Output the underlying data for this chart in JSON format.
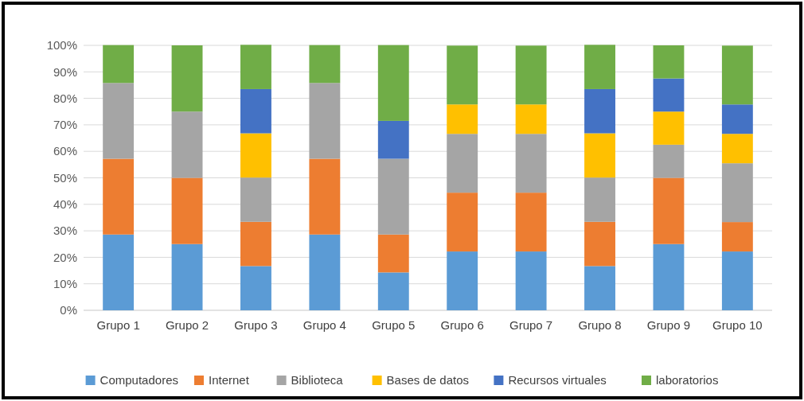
{
  "chart_data": {
    "type": "bar",
    "stacked": true,
    "categories": [
      "Grupo 1",
      "Grupo 2",
      "Grupo 3",
      "Grupo 4",
      "Grupo 5",
      "Grupo 6",
      "Grupo 7",
      "Grupo 8",
      "Grupo 9",
      "Grupo 10"
    ],
    "series": [
      {
        "name": "Computadores",
        "color": "#5b9bd5",
        "values": [
          28.6,
          25,
          16.7,
          28.6,
          14.3,
          22.2,
          22.2,
          16.7,
          25,
          22.2
        ]
      },
      {
        "name": "Internet",
        "color": "#ed7d31",
        "values": [
          28.6,
          25,
          16.7,
          28.6,
          14.3,
          22.2,
          22.2,
          16.7,
          25,
          11.1
        ]
      },
      {
        "name": "Biblioteca",
        "color": "#a5a5a5",
        "values": [
          28.6,
          25,
          16.7,
          28.6,
          28.6,
          22.2,
          22.2,
          16.7,
          12.5,
          22.2
        ]
      },
      {
        "name": "Bases de datos",
        "color": "#ffc000",
        "values": [
          0,
          0,
          16.7,
          0,
          0,
          11.1,
          11.1,
          16.7,
          12.5,
          11.1
        ]
      },
      {
        "name": "Recursos virtuales",
        "color": "#4472c4",
        "values": [
          0,
          0,
          16.7,
          0,
          14.3,
          0,
          0,
          16.7,
          12.5,
          11.1
        ]
      },
      {
        "name": "laboratorios",
        "color": "#70ad47",
        "values": [
          14.3,
          25,
          16.7,
          14.3,
          28.6,
          22.2,
          22.2,
          16.7,
          12.5,
          22.2
        ]
      }
    ],
    "ylim": [
      0,
      100
    ],
    "yticks": [
      {
        "value": 0,
        "label": "0%"
      },
      {
        "value": 10,
        "label": "10%"
      },
      {
        "value": 20,
        "label": "20%"
      },
      {
        "value": 30,
        "label": "30%"
      },
      {
        "value": 40,
        "label": "40%"
      },
      {
        "value": 50,
        "label": "50%"
      },
      {
        "value": 60,
        "label": "60%"
      },
      {
        "value": 70,
        "label": "70%"
      },
      {
        "value": 80,
        "label": "80%"
      },
      {
        "value": 90,
        "label": "90%"
      },
      {
        "value": 100,
        "label": "100%"
      }
    ],
    "grid": "y",
    "legend": "bottom"
  }
}
